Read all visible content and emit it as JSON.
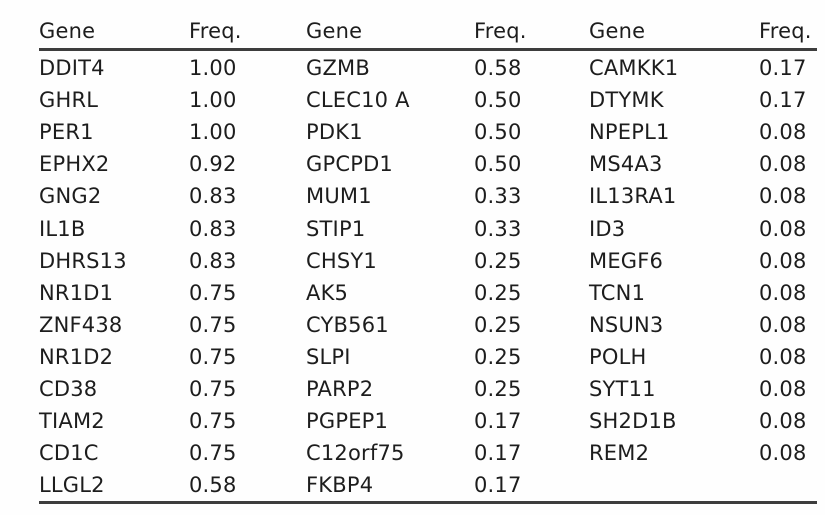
{
  "table": {
    "headers": [
      {
        "gene": "Gene",
        "freq": "Freq."
      },
      {
        "gene": "Gene",
        "freq": "Freq."
      },
      {
        "gene": "Gene",
        "freq": "Freq."
      }
    ],
    "column_groups": [
      {
        "rows": [
          {
            "gene": "DDIT4",
            "freq": "1.00"
          },
          {
            "gene": "GHRL",
            "freq": "1.00"
          },
          {
            "gene": "PER1",
            "freq": "1.00"
          },
          {
            "gene": "EPHX2",
            "freq": "0.92"
          },
          {
            "gene": "GNG2",
            "freq": "0.83"
          },
          {
            "gene": "IL1B",
            "freq": "0.83"
          },
          {
            "gene": "DHRS13",
            "freq": "0.83"
          },
          {
            "gene": "NR1D1",
            "freq": "0.75"
          },
          {
            "gene": "ZNF438",
            "freq": "0.75"
          },
          {
            "gene": "NR1D2",
            "freq": "0.75"
          },
          {
            "gene": "CD38",
            "freq": "0.75"
          },
          {
            "gene": "TIAM2",
            "freq": "0.75"
          },
          {
            "gene": "CD1C",
            "freq": "0.75"
          },
          {
            "gene": "LLGL2",
            "freq": "0.58"
          }
        ]
      },
      {
        "rows": [
          {
            "gene": "GZMB",
            "freq": "0.58"
          },
          {
            "gene": "CLEC10 A",
            "freq": "0.50"
          },
          {
            "gene": "PDK1",
            "freq": "0.50"
          },
          {
            "gene": "GPCPD1",
            "freq": "0.50"
          },
          {
            "gene": "MUM1",
            "freq": "0.33"
          },
          {
            "gene": "STIP1",
            "freq": "0.33"
          },
          {
            "gene": "CHSY1",
            "freq": "0.25"
          },
          {
            "gene": "AK5",
            "freq": "0.25"
          },
          {
            "gene": "CYB561",
            "freq": "0.25"
          },
          {
            "gene": "SLPI",
            "freq": "0.25"
          },
          {
            "gene": "PARP2",
            "freq": "0.25"
          },
          {
            "gene": "PGPEP1",
            "freq": "0.17"
          },
          {
            "gene": "C12orf75",
            "freq": "0.17"
          },
          {
            "gene": "FKBP4",
            "freq": "0.17"
          }
        ]
      },
      {
        "rows": [
          {
            "gene": "CAMKK1",
            "freq": "0.17"
          },
          {
            "gene": "DTYMK",
            "freq": "0.17"
          },
          {
            "gene": "NPEPL1",
            "freq": "0.08"
          },
          {
            "gene": "MS4A3",
            "freq": "0.08"
          },
          {
            "gene": "IL13RA1",
            "freq": "0.08"
          },
          {
            "gene": "ID3",
            "freq": "0.08"
          },
          {
            "gene": "MEGF6",
            "freq": "0.08"
          },
          {
            "gene": "TCN1",
            "freq": "0.08"
          },
          {
            "gene": "NSUN3",
            "freq": "0.08"
          },
          {
            "gene": "POLH",
            "freq": "0.08"
          },
          {
            "gene": "SYT11",
            "freq": "0.08"
          },
          {
            "gene": "SH2D1B",
            "freq": "0.08"
          },
          {
            "gene": "REM2",
            "freq": "0.08"
          }
        ]
      }
    ],
    "row_count": 14
  },
  "colors": {
    "text": "#1d1d1d",
    "rule": "#3d3d3d",
    "background": "#fefefe"
  }
}
